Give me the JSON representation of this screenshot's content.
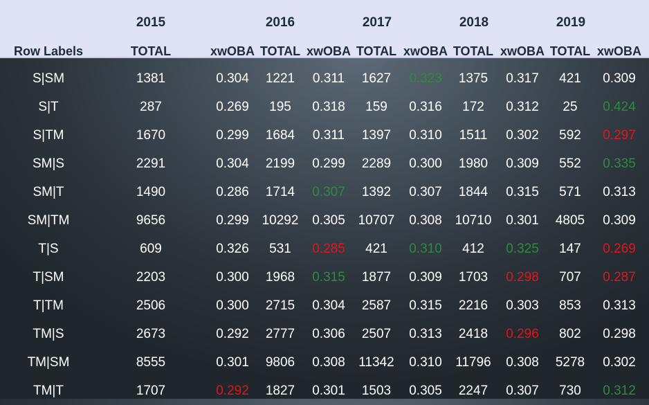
{
  "years": [
    "2015",
    "2016",
    "2017",
    "2018",
    "2019"
  ],
  "column_headers": {
    "row_labels": "Row Labels",
    "c1": "TOTAL",
    "c2": "xwOBA",
    "c3": "TOTAL",
    "c4": "xwOBA",
    "c5": "TOTAL",
    "c6": "xwOBA",
    "c7": "TOTAL",
    "c8": "xwOBA",
    "c9": "TOTAL",
    "c10": "xwOBA"
  },
  "colors": {
    "header_band": "#dfe3f5",
    "header_text": "#1e2a3d",
    "body_text": "#ffffff",
    "high_value": "#2e8b3e",
    "low_value": "#e0161c"
  },
  "rows": [
    {
      "label": "S|SM",
      "c1": "1381",
      "c2": "0.304",
      "c3": "1221",
      "c4": "0.311",
      "c5": "1627",
      "c6": "0.323",
      "c7": "1375",
      "c8": "0.317",
      "c9": "421",
      "c10": "0.309"
    },
    {
      "label": "S|T",
      "c1": "287",
      "c2": "0.269",
      "c3": "195",
      "c4": "0.318",
      "c5": "159",
      "c6": "0.316",
      "c7": "172",
      "c8": "0.312",
      "c9": "25",
      "c10": "0.424"
    },
    {
      "label": "S|TM",
      "c1": "1670",
      "c2": "0.299",
      "c3": "1684",
      "c4": "0.311",
      "c5": "1397",
      "c6": "0.310",
      "c7": "1511",
      "c8": "0.302",
      "c9": "592",
      "c10": "0.297"
    },
    {
      "label": "SM|S",
      "c1": "2291",
      "c2": "0.304",
      "c3": "2199",
      "c4": "0.299",
      "c5": "2289",
      "c6": "0.300",
      "c7": "1980",
      "c8": "0.309",
      "c9": "552",
      "c10": "0.335"
    },
    {
      "label": "SM|T",
      "c1": "1490",
      "c2": "0.286",
      "c3": "1714",
      "c4": "0.307",
      "c5": "1392",
      "c6": "0.307",
      "c7": "1844",
      "c8": "0.315",
      "c9": "571",
      "c10": "0.313"
    },
    {
      "label": "SM|TM",
      "c1": "9656",
      "c2": "0.299",
      "c3": "10292",
      "c4": "0.305",
      "c5": "10707",
      "c6": "0.308",
      "c7": "10710",
      "c8": "0.301",
      "c9": "4805",
      "c10": "0.309"
    },
    {
      "label": "T|S",
      "c1": "609",
      "c2": "0.326",
      "c3": "531",
      "c4": "0.285",
      "c5": "421",
      "c6": "0.310",
      "c7": "412",
      "c8": "0.325",
      "c9": "147",
      "c10": "0.269"
    },
    {
      "label": "T|SM",
      "c1": "2203",
      "c2": "0.300",
      "c3": "1968",
      "c4": "0.315",
      "c5": "1877",
      "c6": "0.309",
      "c7": "1703",
      "c8": "0.298",
      "c9": "707",
      "c10": "0.287"
    },
    {
      "label": "T|TM",
      "c1": "2506",
      "c2": "0.300",
      "c3": "2715",
      "c4": "0.304",
      "c5": "2587",
      "c6": "0.315",
      "c7": "2216",
      "c8": "0.303",
      "c9": "853",
      "c10": "0.313"
    },
    {
      "label": "TM|S",
      "c1": "2673",
      "c2": "0.292",
      "c3": "2777",
      "c4": "0.306",
      "c5": "2507",
      "c6": "0.313",
      "c7": "2418",
      "c8": "0.296",
      "c9": "802",
      "c10": "0.298"
    },
    {
      "label": "TM|SM",
      "c1": "8555",
      "c2": "0.301",
      "c3": "9806",
      "c4": "0.308",
      "c5": "11342",
      "c6": "0.310",
      "c7": "11796",
      "c8": "0.308",
      "c9": "5278",
      "c10": "0.302"
    },
    {
      "label": "TM|T",
      "c1": "1707",
      "c2": "0.292",
      "c3": "1827",
      "c4": "0.301",
      "c5": "1503",
      "c6": "0.305",
      "c7": "2247",
      "c8": "0.307",
      "c9": "730",
      "c10": "0.312"
    }
  ],
  "highlights": {
    "high": [
      [
        0,
        "c6"
      ],
      [
        1,
        "c10"
      ],
      [
        3,
        "c10"
      ],
      [
        4,
        "c4"
      ],
      [
        6,
        "c6"
      ],
      [
        6,
        "c8"
      ],
      [
        7,
        "c4"
      ],
      [
        11,
        "c10"
      ]
    ],
    "low": [
      [
        2,
        "c10"
      ],
      [
        6,
        "c4"
      ],
      [
        6,
        "c10"
      ],
      [
        7,
        "c8"
      ],
      [
        7,
        "c10"
      ],
      [
        9,
        "c8"
      ],
      [
        11,
        "c2"
      ]
    ]
  }
}
